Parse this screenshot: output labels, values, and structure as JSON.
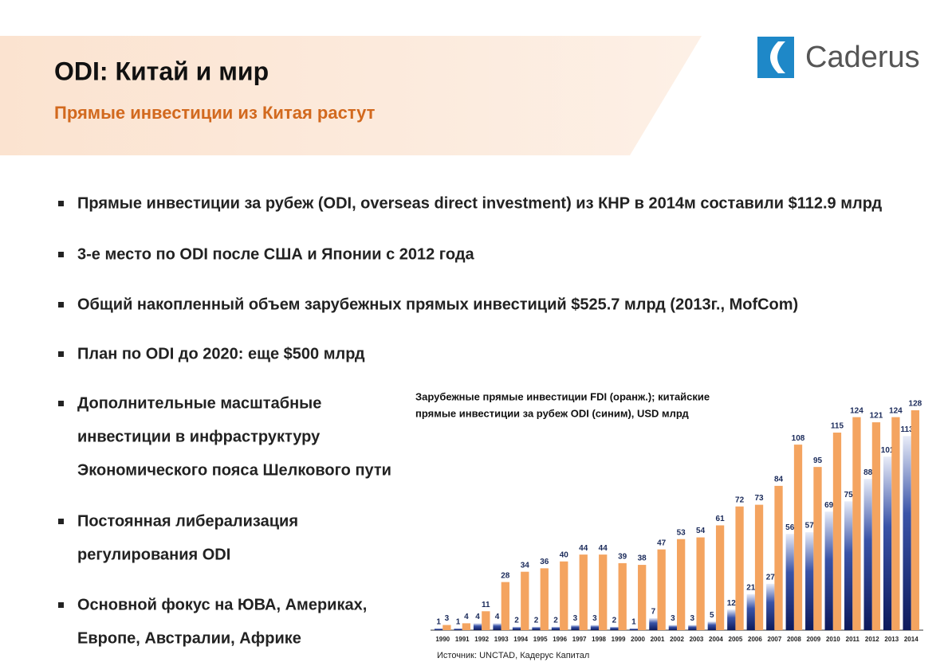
{
  "header": {
    "title": "ODI: Китай и мир",
    "subtitle": "Прямые инвестиции из Китая растут",
    "logo": "Caderus"
  },
  "bullets": [
    [
      "Прямые инвестиции за рубеж (ODI, overseas direct investment) из КНР в 2014м составили $112.9 млрд"
    ],
    [
      "3-е место по ODI после США и Японии с 2012 года"
    ],
    [
      "Общий накопленный объем зарубежных прямых инвестиций $525.7 млрд (2013г., MofCom)"
    ],
    [
      "План по ODI до 2020: еще $500 млрд"
    ],
    [
      "Дополнительные масштабные",
      "инвестиции в инфраструктуру",
      "Экономического пояса Шелкового пути"
    ],
    [
      "Постоянная либерализация",
      "регулирования ODI"
    ],
    [
      "Основной фокус на ЮВА, Америках,",
      "Европе, Австралии, Африке"
    ]
  ],
  "chart_data": {
    "type": "bar",
    "title": [
      "Зарубежные прямые инвестиции FDI (оранж.); китайские",
      "прямые инвестиции за рубеж ODI (синим), USD млрд"
    ],
    "categories": [
      "1990",
      "1991",
      "1992",
      "1993",
      "1994",
      "1995",
      "1996",
      "1997",
      "1998",
      "1999",
      "2000",
      "2001",
      "2002",
      "2003",
      "2004",
      "2005",
      "2006",
      "2007",
      "2008",
      "2009",
      "2010",
      "2011",
      "2012",
      "2013",
      "2014"
    ],
    "series": [
      {
        "color": "#1a2a6c",
        "values": [
          1,
          1,
          4,
          4,
          2,
          2,
          2,
          3,
          3,
          2,
          1,
          7,
          3,
          3,
          5,
          12,
          21,
          27,
          56,
          57,
          69,
          75,
          88,
          101,
          113
        ]
      },
      {
        "color": "#f4a460",
        "values": [
          3,
          4,
          11,
          28,
          34,
          36,
          40,
          44,
          44,
          39,
          38,
          47,
          53,
          54,
          61,
          72,
          73,
          84,
          108,
          95,
          115,
          124,
          121,
          124,
          128
        ]
      }
    ]
  },
  "source": "Источник: UNCTAD, Кадерус Капитал"
}
